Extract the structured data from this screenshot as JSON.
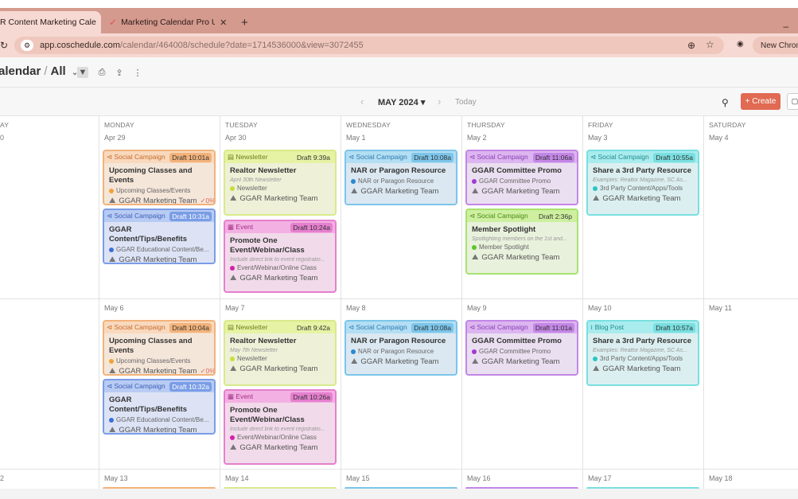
{
  "browser": {
    "tabs": [
      {
        "label": "R Content Marketing Cale",
        "active": true
      },
      {
        "label": "Marketing Calendar Pro Upgra",
        "active": false
      }
    ],
    "new_tab": "+",
    "minimize": "–",
    "url_main": "app.coschedule.com",
    "url_path": "/calendar/464008/schedule?date=1714536000&view=3072455",
    "new_chrome": "New Chrom"
  },
  "app": {
    "title": "alendar",
    "slash": "/",
    "scope": "All"
  },
  "nav": {
    "month": "MAY 2024",
    "today": "Today",
    "create": "+ Create"
  },
  "days": [
    {
      "name": "AY",
      "key": "sun"
    },
    {
      "name": "MONDAY",
      "key": "mon"
    },
    {
      "name": "TUESDAY",
      "key": "tue"
    },
    {
      "name": "WEDNESDAY",
      "key": "wed"
    },
    {
      "name": "THURSDAY",
      "key": "thu"
    },
    {
      "name": "FRIDAY",
      "key": "fri"
    },
    {
      "name": "SATURDAY",
      "key": "sat"
    }
  ],
  "week1": [
    "0",
    "Apr 29",
    "Apr 30",
    "May 1",
    "May 2",
    "May 3",
    "May 4"
  ],
  "week2": [
    "",
    "May 6",
    "May 7",
    "May 8",
    "May 9",
    "May 10",
    "May 11"
  ],
  "week3": [
    "2",
    "May 13",
    "May 14",
    "May 15",
    "May 16",
    "May 17",
    "May 18"
  ],
  "cards": {
    "w1_mon_a": {
      "type": "Social Campaign",
      "draft": "Draft 10:01a",
      "title": "Upcoming Classes and Events",
      "tag": "Upcoming Classes/Events",
      "tag_color": "#f0a23a",
      "team": "GGAR Marketing Team",
      "pct": "✓0%"
    },
    "w1_mon_b": {
      "type": "Social Campaign",
      "draft": "Draft 10:31a",
      "title": "GGAR Content/Tips/Benefits",
      "tag": "GGAR Educational Content/Be...",
      "tag_color": "#3b6fd8",
      "team": "GGAR Marketing Team"
    },
    "w1_tue_a": {
      "type": "Newsletter",
      "draft": "Draft 9:39a",
      "title": "Realtor Newsletter",
      "sub": "April 30th Newsletter",
      "tag": "Newsletter",
      "tag_color": "#c9dd3a",
      "team": "GGAR Marketing Team"
    },
    "w1_tue_b": {
      "type": "Event",
      "draft": "Draft 10:24a",
      "title": "Promote One Event/Webinar/Class",
      "sub": "Include direct link to event registratio...",
      "tag": "Event/Webinar/Online Class",
      "tag_color": "#d420a8",
      "team": "GGAR Marketing Team"
    },
    "w1_wed_a": {
      "type": "Social Campaign",
      "draft": "Draft 10:08a",
      "title": "NAR or Paragon Resource",
      "tag": "NAR or Paragon Resource",
      "tag_color": "#2a8ad0",
      "team": "GGAR Marketing Team"
    },
    "w1_thu_a": {
      "type": "Social Campaign",
      "draft": "Draft 11:06a",
      "title": "GGAR Committee Promo",
      "tag": "GGAR Committee Promo",
      "tag_color": "#a23ad0",
      "team": "GGAR Marketing Team"
    },
    "w1_thu_b": {
      "type": "Social Campaign",
      "draft": "Draft 2:36p",
      "title": "Member Spotlight",
      "sub": "Spotlighting members on the 1st and...",
      "tag": "Member Spotlight",
      "tag_color": "#5cc42a",
      "team": "GGAR Marketing Team"
    },
    "w1_fri_a": {
      "type": "Social Campaign",
      "draft": "Draft 10:55a",
      "title": "Share a 3rd Party Resource",
      "sub": "Examples: Realtor Magazine, SC As...",
      "tag": "3rd Party Content/Apps/Tools",
      "tag_color": "#2ac4c8",
      "team": "GGAR Marketing Team"
    },
    "w2_mon_a": {
      "type": "Social Campaign",
      "draft": "Draft 10:04a",
      "title": "Upcoming Classes and Events",
      "tag": "Upcoming Classes/Events",
      "tag_color": "#f0a23a",
      "team": "GGAR Marketing Team",
      "pct": "✓0%"
    },
    "w2_mon_b": {
      "type": "Social Campaign",
      "draft": "Draft 10:32a",
      "title": "GGAR Content/Tips/Benefits",
      "tag": "GGAR Educational Content/Be...",
      "tag_color": "#3b6fd8",
      "team": "GGAR Marketing Team"
    },
    "w2_tue_a": {
      "type": "Newsletter",
      "draft": "Draft 9:42a",
      "title": "Realtor Newsletter",
      "sub": "May 7th Newsletter",
      "tag": "Newsletter",
      "tag_color": "#c9dd3a",
      "team": "GGAR Marketing Team"
    },
    "w2_tue_b": {
      "type": "Event",
      "draft": "Draft 10:26a",
      "title": "Promote One Event/Webinar/Class",
      "sub": "Include direct link to event registratio...",
      "tag": "Event/Webinar/Online Class",
      "tag_color": "#d420a8",
      "team": "GGAR Marketing Team"
    },
    "w2_wed_a": {
      "type": "Social Campaign",
      "draft": "Draft 10:08a",
      "title": "NAR or Paragon Resource",
      "tag": "NAR or Paragon Resource",
      "tag_color": "#2a8ad0",
      "team": "GGAR Marketing Team"
    },
    "w2_thu_a": {
      "type": "Social Campaign",
      "draft": "Draft 11:01a",
      "title": "GGAR Committee Promo",
      "tag": "GGAR Committee Promo",
      "tag_color": "#a23ad0",
      "team": "GGAR Marketing Team"
    },
    "w2_fri_a": {
      "type": "Blog Post",
      "draft": "Draft 10:57a",
      "title": "Share a 3rd Party Resource",
      "sub": "Examples: Realtor Magazine, SC As...",
      "tag": "3rd Party Content/Apps/Tools",
      "tag_color": "#2ac4c8",
      "team": "GGAR Marketing Team"
    }
  },
  "icons": {
    "social": "megaphone-icon",
    "newsletter": "newspaper-icon",
    "event": "calendar-icon",
    "blog": "rss-icon",
    "team": "team-icon"
  }
}
